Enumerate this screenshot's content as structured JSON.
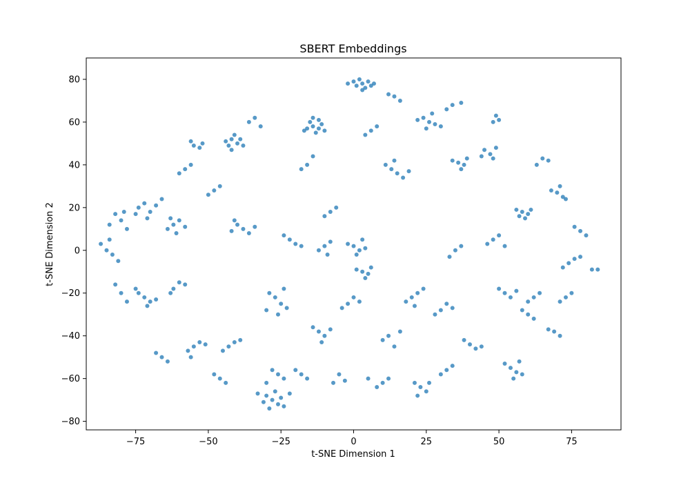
{
  "chart_data": {
    "type": "scatter",
    "title": "SBERT Embeddings",
    "xlabel": "t-SNE Dimension 1",
    "ylabel": "t-SNE Dimension 2",
    "xlim": [
      -92,
      92
    ],
    "ylim": [
      -84,
      90
    ],
    "xticks": [
      -75,
      -50,
      -25,
      0,
      25,
      50,
      75
    ],
    "yticks": [
      -80,
      -60,
      -40,
      -20,
      0,
      20,
      40,
      60,
      80
    ],
    "xtick_labels": [
      "−75",
      "−50",
      "−25",
      "0",
      "25",
      "50",
      "75"
    ],
    "ytick_labels": [
      "−80",
      "−60",
      "−40",
      "−20",
      "0",
      "20",
      "40",
      "60",
      "80"
    ],
    "grid": false,
    "legend": "none",
    "marker_color": "#1f77b4",
    "marker_alpha": 0.75,
    "series": [
      {
        "points": [
          [
            3,
            78
          ],
          [
            5,
            79
          ],
          [
            1,
            77
          ],
          [
            4,
            76
          ],
          [
            0,
            79
          ],
          [
            6,
            77
          ],
          [
            2,
            80
          ],
          [
            -2,
            78
          ],
          [
            7,
            78
          ],
          [
            3,
            75
          ],
          [
            -14,
            58
          ],
          [
            -12,
            57
          ],
          [
            -15,
            60
          ],
          [
            -11,
            59
          ],
          [
            -13,
            55
          ],
          [
            -16,
            57
          ],
          [
            -10,
            56
          ],
          [
            -14,
            62
          ],
          [
            -12,
            61
          ],
          [
            -17,
            56
          ],
          [
            -42,
            52
          ],
          [
            -40,
            50
          ],
          [
            -43,
            49
          ],
          [
            -41,
            54
          ],
          [
            -39,
            52
          ],
          [
            -44,
            51
          ],
          [
            -38,
            49
          ],
          [
            -42,
            47
          ],
          [
            -55,
            49
          ],
          [
            -53,
            48
          ],
          [
            -56,
            51
          ],
          [
            -52,
            50
          ],
          [
            26,
            60
          ],
          [
            24,
            62
          ],
          [
            28,
            59
          ],
          [
            22,
            61
          ],
          [
            30,
            58
          ],
          [
            25,
            57
          ],
          [
            27,
            64
          ],
          [
            36,
            41
          ],
          [
            38,
            40
          ],
          [
            34,
            42
          ],
          [
            37,
            38
          ],
          [
            39,
            43
          ],
          [
            47,
            45
          ],
          [
            45,
            47
          ],
          [
            48,
            43
          ],
          [
            44,
            44
          ],
          [
            49,
            48
          ],
          [
            58,
            18
          ],
          [
            60,
            17
          ],
          [
            56,
            19
          ],
          [
            59,
            15
          ],
          [
            61,
            19
          ],
          [
            57,
            16
          ],
          [
            70,
            27
          ],
          [
            72,
            25
          ],
          [
            68,
            28
          ],
          [
            71,
            30
          ],
          [
            73,
            24
          ],
          [
            -74,
            20
          ],
          [
            -72,
            22
          ],
          [
            -70,
            18
          ],
          [
            -75,
            17
          ],
          [
            -68,
            21
          ],
          [
            -66,
            24
          ],
          [
            -71,
            15
          ],
          [
            -62,
            12
          ],
          [
            -60,
            14
          ],
          [
            -64,
            10
          ],
          [
            -58,
            11
          ],
          [
            -61,
            8
          ],
          [
            -63,
            15
          ],
          [
            -80,
            14
          ],
          [
            -82,
            17
          ],
          [
            -78,
            10
          ],
          [
            -84,
            12
          ],
          [
            -79,
            18
          ],
          [
            -87,
            3
          ],
          [
            -85,
            0
          ],
          [
            -83,
            -2
          ],
          [
            -81,
            -5
          ],
          [
            -84,
            5
          ],
          [
            -72,
            -22
          ],
          [
            -70,
            -24
          ],
          [
            -74,
            -20
          ],
          [
            -68,
            -23
          ],
          [
            -71,
            -26
          ],
          [
            -75,
            -18
          ],
          [
            -62,
            -18
          ],
          [
            -60,
            -15
          ],
          [
            -63,
            -20
          ],
          [
            -58,
            -16
          ],
          [
            -55,
            -45
          ],
          [
            -53,
            -43
          ],
          [
            -57,
            -47
          ],
          [
            -51,
            -44
          ],
          [
            -56,
            -50
          ],
          [
            -43,
            -45
          ],
          [
            -41,
            -43
          ],
          [
            -45,
            -47
          ],
          [
            -39,
            -42
          ],
          [
            -28,
            -70
          ],
          [
            -26,
            -72
          ],
          [
            -30,
            -68
          ],
          [
            -25,
            -69
          ],
          [
            -29,
            -74
          ],
          [
            -27,
            -66
          ],
          [
            -31,
            -71
          ],
          [
            -24,
            -73
          ],
          [
            -22,
            -67
          ],
          [
            -33,
            -67
          ],
          [
            -26,
            -58
          ],
          [
            -24,
            -60
          ],
          [
            -28,
            -56
          ],
          [
            -30,
            -62
          ],
          [
            -27,
            -22
          ],
          [
            -25,
            -25
          ],
          [
            -29,
            -20
          ],
          [
            -23,
            -27
          ],
          [
            -30,
            -28
          ],
          [
            -26,
            -30
          ],
          [
            -24,
            -18
          ],
          [
            -12,
            -38
          ],
          [
            -10,
            -40
          ],
          [
            -14,
            -36
          ],
          [
            -8,
            -37
          ],
          [
            -11,
            -43
          ],
          [
            -2,
            -25
          ],
          [
            0,
            -22
          ],
          [
            -4,
            -27
          ],
          [
            2,
            -24
          ],
          [
            3,
            -10
          ],
          [
            5,
            -11
          ],
          [
            1,
            -9
          ],
          [
            6,
            -8
          ],
          [
            4,
            -13
          ],
          [
            0,
            2
          ],
          [
            2,
            0
          ],
          [
            -2,
            3
          ],
          [
            4,
            1
          ],
          [
            1,
            -2
          ],
          [
            3,
            5
          ],
          [
            -10,
            2
          ],
          [
            -8,
            4
          ],
          [
            -12,
            0
          ],
          [
            -9,
            -2
          ],
          [
            -40,
            12
          ],
          [
            -38,
            10
          ],
          [
            -42,
            9
          ],
          [
            -36,
            8
          ],
          [
            -41,
            14
          ],
          [
            -34,
            11
          ],
          [
            -22,
            5
          ],
          [
            -20,
            3
          ],
          [
            -24,
            7
          ],
          [
            -18,
            2
          ],
          [
            13,
            38
          ],
          [
            15,
            36
          ],
          [
            11,
            40
          ],
          [
            17,
            34
          ],
          [
            14,
            42
          ],
          [
            19,
            37
          ],
          [
            20,
            -22
          ],
          [
            22,
            -20
          ],
          [
            18,
            -24
          ],
          [
            24,
            -18
          ],
          [
            21,
            -26
          ],
          [
            30,
            -28
          ],
          [
            32,
            -25
          ],
          [
            28,
            -30
          ],
          [
            34,
            -27
          ],
          [
            12,
            -40
          ],
          [
            14,
            -45
          ],
          [
            10,
            -42
          ],
          [
            16,
            -38
          ],
          [
            23,
            -64
          ],
          [
            25,
            -66
          ],
          [
            21,
            -62
          ],
          [
            26,
            -62
          ],
          [
            22,
            -68
          ],
          [
            54,
            -55
          ],
          [
            56,
            -57
          ],
          [
            52,
            -53
          ],
          [
            57,
            -52
          ],
          [
            55,
            -60
          ],
          [
            58,
            -58
          ],
          [
            40,
            -44
          ],
          [
            42,
            -46
          ],
          [
            38,
            -42
          ],
          [
            44,
            -45
          ],
          [
            52,
            -20
          ],
          [
            54,
            -22
          ],
          [
            50,
            -18
          ],
          [
            56,
            -19
          ],
          [
            62,
            -22
          ],
          [
            60,
            -24
          ],
          [
            64,
            -20
          ],
          [
            74,
            -6
          ],
          [
            76,
            -4
          ],
          [
            72,
            -8
          ],
          [
            78,
            -3
          ],
          [
            82,
            -9
          ],
          [
            84,
            -9
          ],
          [
            73,
            -22
          ],
          [
            75,
            -20
          ],
          [
            71,
            -24
          ],
          [
            69,
            -38
          ],
          [
            71,
            -40
          ],
          [
            67,
            -37
          ],
          [
            48,
            5
          ],
          [
            46,
            3
          ],
          [
            50,
            7
          ],
          [
            52,
            2
          ],
          [
            35,
            0
          ],
          [
            33,
            -3
          ],
          [
            37,
            2
          ],
          [
            5,
            -60
          ],
          [
            -5,
            -58
          ],
          [
            -7,
            -62
          ],
          [
            -3,
            -61
          ],
          [
            -8,
            18
          ],
          [
            -6,
            20
          ],
          [
            -10,
            16
          ],
          [
            -48,
            28
          ],
          [
            -46,
            30
          ],
          [
            -50,
            26
          ],
          [
            -58,
            38
          ],
          [
            -60,
            36
          ],
          [
            -56,
            40
          ],
          [
            -34,
            62
          ],
          [
            -36,
            60
          ],
          [
            -32,
            58
          ],
          [
            -16,
            40
          ],
          [
            -14,
            44
          ],
          [
            -18,
            38
          ],
          [
            6,
            56
          ],
          [
            8,
            58
          ],
          [
            4,
            54
          ],
          [
            14,
            72
          ],
          [
            16,
            70
          ],
          [
            12,
            73
          ],
          [
            34,
            68
          ],
          [
            37,
            69
          ],
          [
            32,
            66
          ],
          [
            49,
            63
          ],
          [
            50,
            61
          ],
          [
            48,
            60
          ],
          [
            65,
            43
          ],
          [
            67,
            42
          ],
          [
            63,
            40
          ],
          [
            78,
            9
          ],
          [
            80,
            7
          ],
          [
            76,
            11
          ],
          [
            -82,
            -16
          ],
          [
            -80,
            -20
          ],
          [
            -78,
            -24
          ],
          [
            -66,
            -50
          ],
          [
            -64,
            -52
          ],
          [
            -68,
            -48
          ],
          [
            -46,
            -60
          ],
          [
            -44,
            -62
          ],
          [
            -48,
            -58
          ],
          [
            -18,
            -58
          ],
          [
            -16,
            -60
          ],
          [
            -20,
            -56
          ],
          [
            10,
            -62
          ],
          [
            12,
            -60
          ],
          [
            8,
            -64
          ],
          [
            32,
            -56
          ],
          [
            30,
            -58
          ],
          [
            34,
            -54
          ],
          [
            60,
            -30
          ],
          [
            62,
            -32
          ],
          [
            58,
            -28
          ]
        ]
      }
    ]
  }
}
